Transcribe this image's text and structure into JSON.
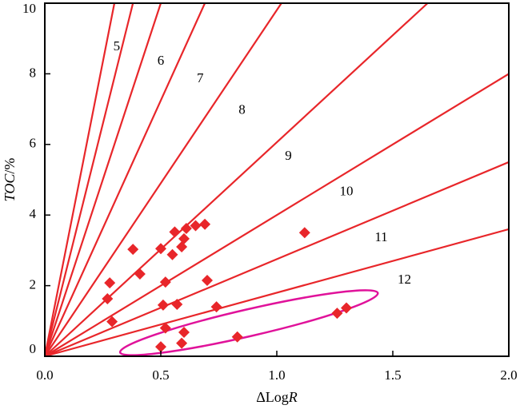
{
  "chart_data": {
    "type": "scatter",
    "xlabel_prefix": "ΔLog",
    "xlabel_var": "R",
    "ylabel_var": "TOC",
    "ylabel_unit": "/%",
    "xlim": [
      0,
      2
    ],
    "ylim": [
      0,
      10
    ],
    "x_ticks": [
      "0.0",
      "0.5",
      "1.0",
      "1.5",
      "2.0"
    ],
    "y_ticks": [
      "0",
      "2",
      "4",
      "6",
      "8",
      "10"
    ],
    "grid": false,
    "colors": {
      "lines": "#e8262a",
      "points": "#e8262a",
      "ellipse": "#e0129a",
      "axes": "#000000"
    },
    "reference_lines": [
      {
        "label": "5",
        "end": [
          0.3,
          10.0
        ]
      },
      {
        "label": "6",
        "end": [
          0.38,
          10.0
        ]
      },
      {
        "label": "7",
        "end": [
          0.5,
          10.0
        ]
      },
      {
        "label": "8",
        "end": [
          0.69,
          10.0
        ]
      },
      {
        "label": "9",
        "end": [
          1.02,
          10.0
        ]
      },
      {
        "label": "10",
        "end": [
          1.65,
          10.0
        ]
      },
      {
        "label": "11",
        "end": [
          2.0,
          8.0
        ]
      },
      {
        "label": "12",
        "end": [
          2.0,
          5.5
        ]
      },
      {
        "label": "",
        "end": [
          2.0,
          3.6
        ]
      }
    ],
    "line_labels": [
      {
        "text": "5",
        "at": [
          0.31,
          8.75
        ]
      },
      {
        "text": "6",
        "at": [
          0.5,
          8.35
        ]
      },
      {
        "text": "7",
        "at": [
          0.67,
          7.85
        ]
      },
      {
        "text": "8",
        "at": [
          0.85,
          6.95
        ]
      },
      {
        "text": "9",
        "at": [
          1.05,
          5.65
        ]
      },
      {
        "text": "10",
        "at": [
          1.3,
          4.65
        ]
      },
      {
        "text": "11",
        "at": [
          1.45,
          3.35
        ]
      },
      {
        "text": "12",
        "at": [
          1.55,
          2.15
        ]
      }
    ],
    "points": [
      {
        "x": 0.27,
        "y": 1.63
      },
      {
        "x": 0.28,
        "y": 2.08
      },
      {
        "x": 0.29,
        "y": 0.98
      },
      {
        "x": 0.38,
        "y": 3.03
      },
      {
        "x": 0.41,
        "y": 2.33
      },
      {
        "x": 0.5,
        "y": 3.05
      },
      {
        "x": 0.51,
        "y": 1.45
      },
      {
        "x": 0.52,
        "y": 2.1
      },
      {
        "x": 0.52,
        "y": 0.8
      },
      {
        "x": 0.5,
        "y": 0.27
      },
      {
        "x": 0.55,
        "y": 2.88
      },
      {
        "x": 0.56,
        "y": 3.52
      },
      {
        "x": 0.57,
        "y": 1.47
      },
      {
        "x": 0.59,
        "y": 3.1
      },
      {
        "x": 0.6,
        "y": 3.33
      },
      {
        "x": 0.59,
        "y": 0.37
      },
      {
        "x": 0.6,
        "y": 0.68
      },
      {
        "x": 0.61,
        "y": 3.62
      },
      {
        "x": 0.65,
        "y": 3.7
      },
      {
        "x": 0.69,
        "y": 3.74
      },
      {
        "x": 0.7,
        "y": 2.15
      },
      {
        "x": 0.74,
        "y": 1.4
      },
      {
        "x": 0.83,
        "y": 0.55
      },
      {
        "x": 1.12,
        "y": 3.5
      },
      {
        "x": 1.26,
        "y": 1.22
      },
      {
        "x": 1.3,
        "y": 1.37
      }
    ],
    "ellipse": {
      "center": [
        0.88,
        0.95
      ],
      "x_semi_axis": 0.57,
      "y_semi_axis": 0.38,
      "rotation_deg": -13
    }
  }
}
